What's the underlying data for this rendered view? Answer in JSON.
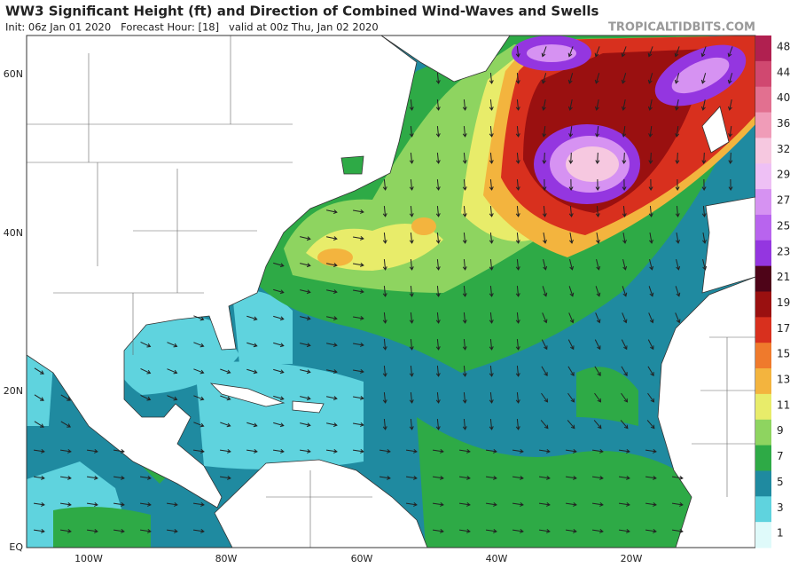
{
  "header": {
    "title": "WW3 Significant Height (ft) and Direction of Combined Wind-Waves and Swells",
    "subtitle": "Init: 06z Jan 01 2020   Forecast Hour: [18]   valid at 00z Thu, Jan 02 2020",
    "watermark": "TROPICALTIDBITS.COM"
  },
  "map": {
    "lat_labels": [
      "60N",
      "40N",
      "20N",
      "EQ"
    ],
    "lon_labels": [
      "100W",
      "80W",
      "60W",
      "40W",
      "20W"
    ]
  },
  "colorbar": {
    "labels": [
      48,
      44,
      40,
      36,
      32,
      29,
      27,
      25,
      23,
      21,
      19,
      17,
      15,
      13,
      11,
      9,
      7,
      5,
      3,
      1
    ],
    "colors": [
      "#b02050",
      "#d04870",
      "#e27090",
      "#f09cb8",
      "#f6c8e0",
      "#eec0f5",
      "#d692f2",
      "#b864ee",
      "#9436e0",
      "#4e0418",
      "#9a1010",
      "#d8301e",
      "#ef7a2c",
      "#f3b43e",
      "#e8ec6a",
      "#8ed460",
      "#2eaa46",
      "#1f8aa0",
      "#5fd3de",
      "#dffafa"
    ]
  }
}
